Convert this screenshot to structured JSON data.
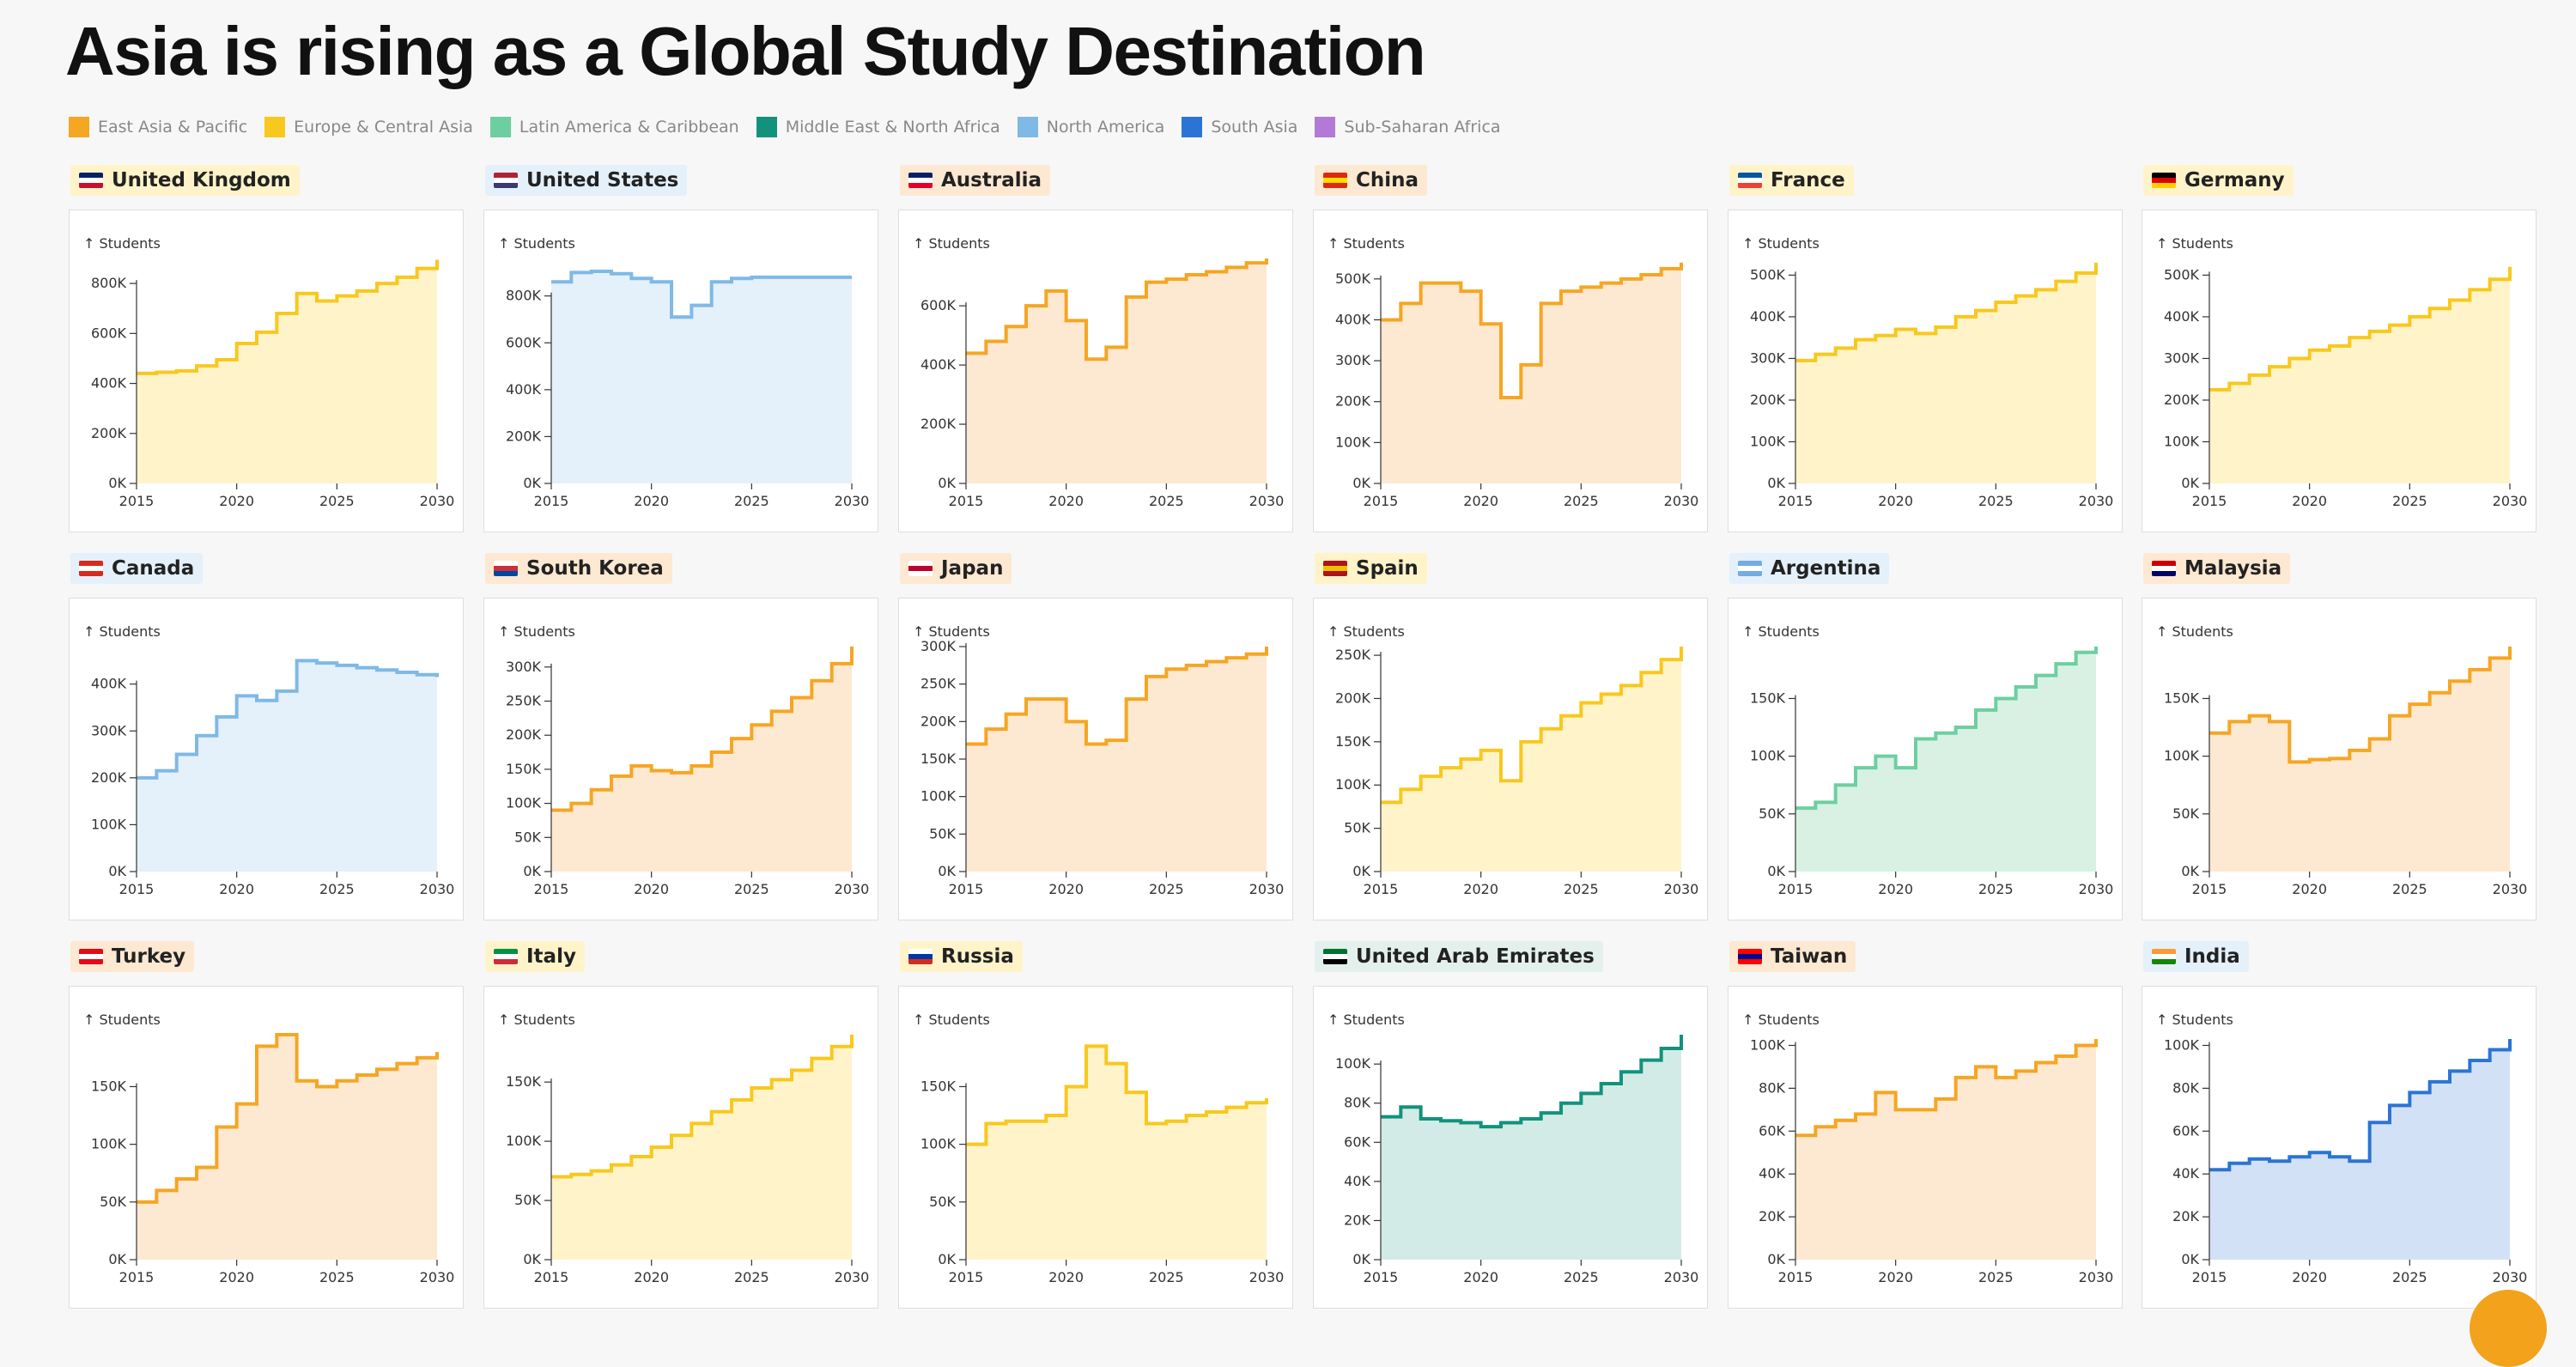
{
  "title": "Asia is rising as a Global Study Destination",
  "legend": [
    {
      "label": "East Asia & Pacific",
      "color": "#f5a623"
    },
    {
      "label": "Europe & Central Asia",
      "color": "#f8c81e"
    },
    {
      "label": "Latin America & Caribbean",
      "color": "#6dcfa0"
    },
    {
      "label": "Middle East & North Africa",
      "color": "#12927c"
    },
    {
      "label": "North America",
      "color": "#7fb9e6"
    },
    {
      "label": "South Asia",
      "color": "#2b74d6"
    },
    {
      "label": "Sub-Saharan Africa",
      "color": "#b27ad6"
    }
  ],
  "y_axis_label": "↑ Students",
  "chart_data": [
    {
      "type": "line",
      "title": "United Kingdom",
      "region": "Europe & Central Asia",
      "color": "#f8c81e",
      "fill": "#fff3c9",
      "label_bg": "#fff3c9",
      "flag": [
        "#012169",
        "#ffffff",
        "#c8102e"
      ],
      "ylim": [
        0,
        900000
      ],
      "yticks": [
        0,
        200000,
        400000,
        600000,
        800000
      ],
      "ytick_labels": [
        "0K",
        "200K",
        "400K",
        "600K",
        "800K"
      ],
      "x": [
        2015,
        2016,
        2017,
        2018,
        2019,
        2020,
        2021,
        2022,
        2023,
        2024,
        2025,
        2026,
        2027,
        2028,
        2029,
        2030
      ],
      "values": [
        440000,
        445000,
        450000,
        470000,
        495000,
        560000,
        605000,
        680000,
        760000,
        730000,
        750000,
        770000,
        800000,
        825000,
        860000,
        895000
      ]
    },
    {
      "type": "line",
      "title": "United States",
      "region": "North America",
      "color": "#7fb9e6",
      "fill": "#e4f0fa",
      "label_bg": "#e4f0fa",
      "flag": [
        "#b22234",
        "#ffffff",
        "#3c3b6e"
      ],
      "ylim": [
        0,
        960000
      ],
      "yticks": [
        0,
        200000,
        400000,
        600000,
        800000
      ],
      "ytick_labels": [
        "0K",
        "200K",
        "400K",
        "600K",
        "800K"
      ],
      "x": [
        2015,
        2016,
        2017,
        2018,
        2019,
        2020,
        2021,
        2022,
        2023,
        2024,
        2025,
        2026,
        2027,
        2028,
        2029,
        2030
      ],
      "values": [
        860000,
        900000,
        905000,
        895000,
        875000,
        860000,
        710000,
        760000,
        860000,
        875000,
        880000,
        880000,
        880000,
        880000,
        880000,
        880000
      ]
    },
    {
      "type": "line",
      "title": "Australia",
      "region": "East Asia & Pacific",
      "color": "#f5a623",
      "fill": "#fde8d2",
      "label_bg": "#fde8d2",
      "flag": [
        "#012169",
        "#ffffff",
        "#e4002b"
      ],
      "ylim": [
        0,
        760000
      ],
      "yticks": [
        0,
        200000,
        400000,
        600000
      ],
      "ytick_labels": [
        "0K",
        "200K",
        "400K",
        "600K"
      ],
      "x": [
        2015,
        2016,
        2017,
        2018,
        2019,
        2020,
        2021,
        2022,
        2023,
        2024,
        2025,
        2026,
        2027,
        2028,
        2029,
        2030
      ],
      "values": [
        440000,
        480000,
        530000,
        600000,
        650000,
        550000,
        420000,
        460000,
        630000,
        680000,
        690000,
        705000,
        715000,
        730000,
        745000,
        760000
      ]
    },
    {
      "type": "line",
      "title": "China",
      "region": "East Asia & Pacific",
      "color": "#f5a623",
      "fill": "#fde8d2",
      "label_bg": "#fde8d2",
      "flag": [
        "#de2910",
        "#ffde00",
        "#de2910"
      ],
      "ylim": [
        0,
        550000
      ],
      "yticks": [
        0,
        100000,
        200000,
        300000,
        400000,
        500000
      ],
      "ytick_labels": [
        "0K",
        "100K",
        "200K",
        "300K",
        "400K",
        "500K"
      ],
      "x": [
        2015,
        2016,
        2017,
        2018,
        2019,
        2020,
        2021,
        2022,
        2023,
        2024,
        2025,
        2026,
        2027,
        2028,
        2029,
        2030
      ],
      "values": [
        400000,
        440000,
        490000,
        490000,
        470000,
        390000,
        210000,
        290000,
        440000,
        470000,
        480000,
        490000,
        500000,
        510000,
        525000,
        540000
      ]
    },
    {
      "type": "line",
      "title": "France",
      "region": "Europe & Central Asia",
      "color": "#f8c81e",
      "fill": "#fff3c9",
      "label_bg": "#fff3c9",
      "flag": [
        "#0055a4",
        "#ffffff",
        "#ef4135"
      ],
      "ylim": [
        0,
        540000
      ],
      "yticks": [
        0,
        100000,
        200000,
        300000,
        400000,
        500000
      ],
      "ytick_labels": [
        "0K",
        "100K",
        "200K",
        "300K",
        "400K",
        "500K"
      ],
      "x": [
        2015,
        2016,
        2017,
        2018,
        2019,
        2020,
        2021,
        2022,
        2023,
        2024,
        2025,
        2026,
        2027,
        2028,
        2029,
        2030
      ],
      "values": [
        295000,
        310000,
        325000,
        345000,
        355000,
        370000,
        360000,
        375000,
        400000,
        415000,
        435000,
        450000,
        465000,
        485000,
        505000,
        530000
      ]
    },
    {
      "type": "line",
      "title": "Germany",
      "region": "Europe & Central Asia",
      "color": "#f8c81e",
      "fill": "#fff3c9",
      "label_bg": "#fff3c9",
      "flag": [
        "#000000",
        "#dd0000",
        "#ffce00"
      ],
      "ylim": [
        0,
        540000
      ],
      "yticks": [
        0,
        100000,
        200000,
        300000,
        400000,
        500000
      ],
      "ytick_labels": [
        "0K",
        "100K",
        "200K",
        "300K",
        "400K",
        "500K"
      ],
      "x": [
        2015,
        2016,
        2017,
        2018,
        2019,
        2020,
        2021,
        2022,
        2023,
        2024,
        2025,
        2026,
        2027,
        2028,
        2029,
        2030
      ],
      "values": [
        225000,
        240000,
        260000,
        280000,
        300000,
        320000,
        330000,
        350000,
        365000,
        380000,
        400000,
        420000,
        440000,
        465000,
        490000,
        520000
      ]
    },
    {
      "type": "line",
      "title": "Canada",
      "region": "North America",
      "color": "#7fb9e6",
      "fill": "#e4f0fa",
      "label_bg": "#e4f0fa",
      "flag": [
        "#d52b1e",
        "#ffffff",
        "#d52b1e"
      ],
      "ylim": [
        0,
        480000
      ],
      "yticks": [
        0,
        100000,
        200000,
        300000,
        400000
      ],
      "ytick_labels": [
        "0K",
        "100K",
        "200K",
        "300K",
        "400K"
      ],
      "x": [
        2015,
        2016,
        2017,
        2018,
        2019,
        2020,
        2021,
        2022,
        2023,
        2024,
        2025,
        2026,
        2027,
        2028,
        2029,
        2030
      ],
      "values": [
        200000,
        215000,
        250000,
        290000,
        330000,
        375000,
        365000,
        385000,
        450000,
        445000,
        440000,
        435000,
        430000,
        425000,
        420000,
        415000
      ]
    },
    {
      "type": "line",
      "title": "South Korea",
      "region": "East Asia & Pacific",
      "color": "#f5a623",
      "fill": "#fde8d2",
      "label_bg": "#fde8d2",
      "flag": [
        "#ffffff",
        "#cd2e3a",
        "#0047a0"
      ],
      "ylim": [
        0,
        330000
      ],
      "yticks": [
        0,
        50000,
        100000,
        150000,
        200000,
        250000,
        300000
      ],
      "ytick_labels": [
        "0K",
        "50K",
        "100K",
        "150K",
        "200K",
        "250K",
        "300K"
      ],
      "x": [
        2015,
        2016,
        2017,
        2018,
        2019,
        2020,
        2021,
        2022,
        2023,
        2024,
        2025,
        2026,
        2027,
        2028,
        2029,
        2030
      ],
      "values": [
        90000,
        100000,
        120000,
        140000,
        155000,
        148000,
        145000,
        155000,
        175000,
        195000,
        215000,
        235000,
        255000,
        280000,
        305000,
        330000
      ]
    },
    {
      "type": "line",
      "title": "Japan",
      "region": "East Asia & Pacific",
      "color": "#f5a623",
      "fill": "#fde8d2",
      "label_bg": "#fde8d2",
      "flag": [
        "#ffffff",
        "#bc002d",
        "#ffffff"
      ],
      "ylim": [
        0,
        300000
      ],
      "yticks": [
        0,
        50000,
        100000,
        150000,
        200000,
        250000,
        300000
      ],
      "ytick_labels": [
        "0K",
        "50K",
        "100K",
        "150K",
        "200K",
        "250K",
        "300K"
      ],
      "x": [
        2015,
        2016,
        2017,
        2018,
        2019,
        2020,
        2021,
        2022,
        2023,
        2024,
        2025,
        2026,
        2027,
        2028,
        2029,
        2030
      ],
      "values": [
        170000,
        190000,
        210000,
        230000,
        230000,
        200000,
        170000,
        175000,
        230000,
        260000,
        270000,
        275000,
        280000,
        285000,
        290000,
        300000
      ]
    },
    {
      "type": "line",
      "title": "Spain",
      "region": "Europe & Central Asia",
      "color": "#f8c81e",
      "fill": "#fff3c9",
      "label_bg": "#fff3c9",
      "flag": [
        "#aa151b",
        "#f1bf00",
        "#aa151b"
      ],
      "ylim": [
        0,
        260000
      ],
      "yticks": [
        0,
        50000,
        100000,
        150000,
        200000,
        250000
      ],
      "ytick_labels": [
        "0K",
        "50K",
        "100K",
        "150K",
        "200K",
        "250K"
      ],
      "x": [
        2015,
        2016,
        2017,
        2018,
        2019,
        2020,
        2021,
        2022,
        2023,
        2024,
        2025,
        2026,
        2027,
        2028,
        2029,
        2030
      ],
      "values": [
        80000,
        95000,
        110000,
        120000,
        130000,
        140000,
        105000,
        150000,
        165000,
        180000,
        195000,
        205000,
        215000,
        230000,
        245000,
        260000
      ]
    },
    {
      "type": "line",
      "title": "Argentina",
      "region": "Latin America & Caribbean",
      "color": "#6dcfa0",
      "fill": "#d8f1e3",
      "label_bg": "#e4f0fa",
      "flag": [
        "#74acdf",
        "#ffffff",
        "#74acdf"
      ],
      "ylim": [
        0,
        195000
      ],
      "yticks": [
        0,
        50000,
        100000,
        150000
      ],
      "ytick_labels": [
        "0K",
        "50K",
        "100K",
        "150K"
      ],
      "x": [
        2015,
        2016,
        2017,
        2018,
        2019,
        2020,
        2021,
        2022,
        2023,
        2024,
        2025,
        2026,
        2027,
        2028,
        2029,
        2030
      ],
      "values": [
        55000,
        60000,
        75000,
        90000,
        100000,
        90000,
        115000,
        120000,
        125000,
        140000,
        150000,
        160000,
        170000,
        180000,
        190000,
        195000
      ]
    },
    {
      "type": "line",
      "title": "Malaysia",
      "region": "East Asia & Pacific",
      "color": "#f5a623",
      "fill": "#fde8d2",
      "label_bg": "#fde8d2",
      "flag": [
        "#cc0001",
        "#ffffff",
        "#010066"
      ],
      "ylim": [
        0,
        195000
      ],
      "yticks": [
        0,
        50000,
        100000,
        150000
      ],
      "ytick_labels": [
        "0K",
        "50K",
        "100K",
        "150K"
      ],
      "x": [
        2015,
        2016,
        2017,
        2018,
        2019,
        2020,
        2021,
        2022,
        2023,
        2024,
        2025,
        2026,
        2027,
        2028,
        2029,
        2030
      ],
      "values": [
        120000,
        130000,
        135000,
        130000,
        95000,
        97000,
        98000,
        105000,
        115000,
        135000,
        145000,
        155000,
        165000,
        175000,
        185000,
        195000
      ]
    },
    {
      "type": "line",
      "title": "Turkey",
      "region": "Europe & Central Asia",
      "color": "#f5a623",
      "fill": "#fde8d2",
      "label_bg": "#fde8d2",
      "flag": [
        "#e30a17",
        "#ffffff",
        "#e30a17"
      ],
      "ylim": [
        0,
        195000
      ],
      "yticks": [
        0,
        50000,
        100000,
        150000
      ],
      "ytick_labels": [
        "0K",
        "50K",
        "100K",
        "150K"
      ],
      "x": [
        2015,
        2016,
        2017,
        2018,
        2019,
        2020,
        2021,
        2022,
        2023,
        2024,
        2025,
        2026,
        2027,
        2028,
        2029,
        2030
      ],
      "values": [
        50000,
        60000,
        70000,
        80000,
        115000,
        135000,
        185000,
        195000,
        155000,
        150000,
        155000,
        160000,
        165000,
        170000,
        175000,
        180000
      ]
    },
    {
      "type": "line",
      "title": "Italy",
      "region": "Europe & Central Asia",
      "color": "#f8c81e",
      "fill": "#fff3c9",
      "label_bg": "#fff3c9",
      "flag": [
        "#009246",
        "#ffffff",
        "#ce2b37"
      ],
      "ylim": [
        0,
        190000
      ],
      "yticks": [
        0,
        50000,
        100000,
        150000
      ],
      "ytick_labels": [
        "0K",
        "50K",
        "100K",
        "150K"
      ],
      "x": [
        2015,
        2016,
        2017,
        2018,
        2019,
        2020,
        2021,
        2022,
        2023,
        2024,
        2025,
        2026,
        2027,
        2028,
        2029,
        2030
      ],
      "values": [
        70000,
        72000,
        75000,
        80000,
        87000,
        95000,
        105000,
        115000,
        125000,
        135000,
        145000,
        152000,
        160000,
        170000,
        180000,
        190000
      ]
    },
    {
      "type": "line",
      "title": "Russia",
      "region": "Europe & Central Asia",
      "color": "#f8c81e",
      "fill": "#fff3c9",
      "label_bg": "#fff3c9",
      "flag": [
        "#ffffff",
        "#0039a6",
        "#d52b1e"
      ],
      "ylim": [
        0,
        195000
      ],
      "yticks": [
        0,
        50000,
        100000,
        150000
      ],
      "ytick_labels": [
        "0K",
        "50K",
        "100K",
        "150K"
      ],
      "x": [
        2015,
        2016,
        2017,
        2018,
        2019,
        2020,
        2021,
        2022,
        2023,
        2024,
        2025,
        2026,
        2027,
        2028,
        2029,
        2030
      ],
      "values": [
        100000,
        118000,
        120000,
        120000,
        125000,
        150000,
        185000,
        170000,
        145000,
        118000,
        120000,
        125000,
        128000,
        132000,
        136000,
        140000
      ]
    },
    {
      "type": "line",
      "title": "United Arab Emirates",
      "region": "Middle East & North Africa",
      "color": "#12927c",
      "fill": "#d2ebe6",
      "label_bg": "#e4f0ec",
      "flag": [
        "#00732f",
        "#ffffff",
        "#000000"
      ],
      "ylim": [
        0,
        115000
      ],
      "yticks": [
        0,
        20000,
        40000,
        60000,
        80000,
        100000
      ],
      "ytick_labels": [
        "0K",
        "20K",
        "40K",
        "60K",
        "80K",
        "100K"
      ],
      "x": [
        2015,
        2016,
        2017,
        2018,
        2019,
        2020,
        2021,
        2022,
        2023,
        2024,
        2025,
        2026,
        2027,
        2028,
        2029,
        2030
      ],
      "values": [
        73000,
        78000,
        72000,
        71000,
        70000,
        68000,
        70000,
        72000,
        75000,
        80000,
        85000,
        90000,
        96000,
        102000,
        108000,
        115000
      ]
    },
    {
      "type": "line",
      "title": "Taiwan",
      "region": "East Asia & Pacific",
      "color": "#f5a623",
      "fill": "#fde8d2",
      "label_bg": "#fde8d2",
      "flag": [
        "#fe0000",
        "#000095",
        "#fe0000"
      ],
      "ylim": [
        0,
        105000
      ],
      "yticks": [
        0,
        20000,
        40000,
        60000,
        80000,
        100000
      ],
      "ytick_labels": [
        "0K",
        "20K",
        "40K",
        "60K",
        "80K",
        "100K"
      ],
      "x": [
        2015,
        2016,
        2017,
        2018,
        2019,
        2020,
        2021,
        2022,
        2023,
        2024,
        2025,
        2026,
        2027,
        2028,
        2029,
        2030
      ],
      "values": [
        58000,
        62000,
        65000,
        68000,
        78000,
        70000,
        70000,
        75000,
        85000,
        90000,
        85000,
        88000,
        92000,
        95000,
        100000,
        103000
      ]
    },
    {
      "type": "line",
      "title": "India",
      "region": "South Asia",
      "color": "#2b74d6",
      "fill": "#d3e1f6",
      "label_bg": "#e4f0fa",
      "flag": [
        "#ff9933",
        "#ffffff",
        "#138808"
      ],
      "ylim": [
        0,
        105000
      ],
      "yticks": [
        0,
        20000,
        40000,
        60000,
        80000,
        100000
      ],
      "ytick_labels": [
        "0K",
        "20K",
        "40K",
        "60K",
        "80K",
        "100K"
      ],
      "x": [
        2015,
        2016,
        2017,
        2018,
        2019,
        2020,
        2021,
        2022,
        2023,
        2024,
        2025,
        2026,
        2027,
        2028,
        2029,
        2030
      ],
      "values": [
        42000,
        45000,
        47000,
        46000,
        48000,
        50000,
        48000,
        46000,
        64000,
        72000,
        78000,
        83000,
        88000,
        93000,
        98000,
        103000
      ]
    }
  ],
  "x_tick_labels": [
    "2015",
    "2020",
    "2025",
    "2030"
  ]
}
